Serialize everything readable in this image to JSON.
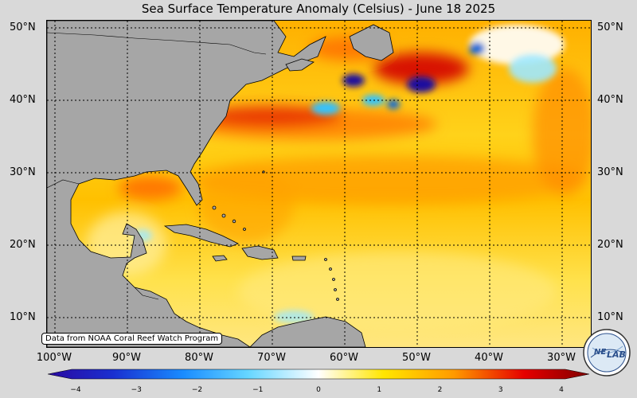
{
  "title": "Sea Surface Temperature Anomaly (Celsius) - June 18 2025",
  "map": {
    "lat_labels": [
      "50°N",
      "40°N",
      "30°N",
      "20°N",
      "10°N"
    ],
    "lon_labels": [
      "100°W",
      "90°W",
      "80°W",
      "70°W",
      "60°W",
      "50°W",
      "40°W",
      "30°W"
    ],
    "land_color": "#a6a6a6",
    "ocean_warm_colors": [
      "#ffffff",
      "#ffe680",
      "#ffc400",
      "#ff8c00",
      "#e60000",
      "#a00000"
    ],
    "ocean_cool_colors": [
      "#9fe8ff",
      "#33c3ff",
      "#0a6bd6",
      "#1b0a9e"
    ]
  },
  "attribution": "Data from NOAA Coral Reef Watch Program",
  "colorbar": {
    "ticks": [
      "−4",
      "−3",
      "−2",
      "−1",
      "0",
      "1",
      "2",
      "3",
      "4"
    ],
    "min": -4,
    "max": 4
  },
  "logo_icon": "nesdis-lab-logo-icon"
}
